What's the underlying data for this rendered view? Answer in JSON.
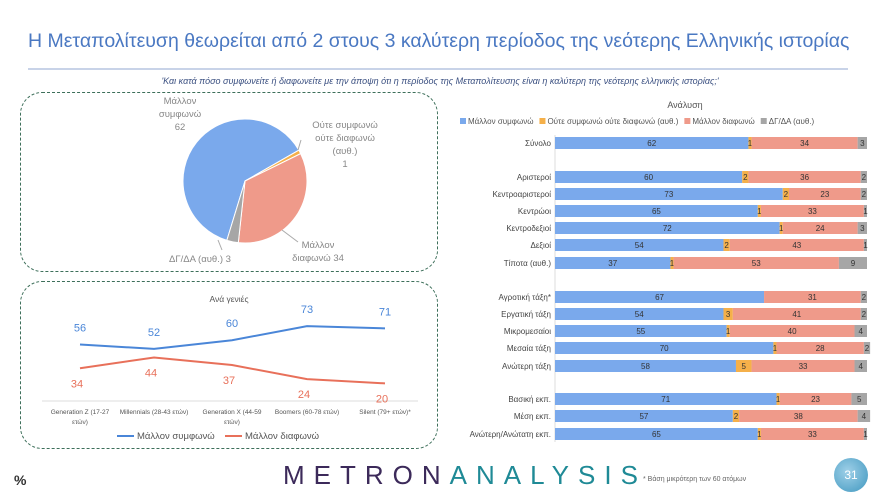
{
  "title": "Η Μεταπολίτευση θεωρείται από 2 στους 3 καλύτερη περίοδος της νεότερης Ελληνικής ιστορίας",
  "question": "'Και κατά πόσο συμφωνείτε ή διαφωνείτε με την άποψη ότι η περίοδος της Μεταπολίτευσης είναι η καλύτερη της νεότερης ελληνικής ιστορίας;'",
  "footer": {
    "unit": "%",
    "logo": "METRONANALYSIS",
    "note": "* Βάση μικρότερη των 60 ατόμων",
    "page": "31"
  },
  "colors": {
    "agree": "#7aa9ec",
    "neutral": "#f5b04a",
    "disagree": "#ef9a8a",
    "dk": "#a6a6a6",
    "line_agree": "#4a86d8",
    "line_disagree": "#e8705a"
  },
  "chart_data": [
    {
      "type": "pie",
      "slices": [
        {
          "label": "Μάλλον συμφωνώ",
          "value": 62
        },
        {
          "label": "Ούτε συμφωνώ ούτε διαφωνώ (αυθ.)",
          "value": 1
        },
        {
          "label": "Μάλλον διαφωνώ",
          "value": 34
        },
        {
          "label": "ΔΓ/ΔΑ (αυθ.)",
          "value": 3
        }
      ]
    },
    {
      "type": "line",
      "title": "Ανά γενιές",
      "categories": [
        "Generation Z (17-27 ετών)",
        "Millennials (28-43 ετών)",
        "Generation X (44-59 ετών)",
        "Boomers (60-78 ετών)",
        "Silent (79+ ετών)*"
      ],
      "series": [
        {
          "name": "Μάλλον συμφωνώ",
          "values": [
            56,
            52,
            60,
            73,
            71
          ]
        },
        {
          "name": "Μάλλον διαφωνώ",
          "values": [
            34,
            44,
            37,
            24,
            20
          ]
        }
      ]
    },
    {
      "type": "bar",
      "stacked": true,
      "orientation": "horizontal",
      "title": "Ανάλυση",
      "legend": "top",
      "series_names": [
        "Μάλλον συμφωνώ",
        "Ούτε συμφωνώ ούτε διαφωνώ (αυθ.)",
        "Μάλλον διαφωνώ",
        "ΔΓ/ΔΑ (αυθ.)"
      ],
      "rows": [
        {
          "label": "Σύνολο",
          "values": [
            62,
            1,
            34,
            3
          ]
        },
        {
          "label": "Αριστεροί",
          "values": [
            60,
            2,
            36,
            2
          ]
        },
        {
          "label": "Κεντροαριστεροί",
          "values": [
            73,
            2,
            23,
            2
          ]
        },
        {
          "label": "Κεντρώοι",
          "values": [
            65,
            1,
            33,
            1
          ]
        },
        {
          "label": "Κεντροδεξιοί",
          "values": [
            72,
            1,
            24,
            3
          ]
        },
        {
          "label": "Δεξιοί",
          "values": [
            54,
            2,
            43,
            1
          ]
        },
        {
          "label": "Τίποτα (αυθ.)",
          "values": [
            37,
            1,
            53,
            9
          ]
        },
        {
          "label": "Αγροτική τάξη*",
          "values": [
            67,
            0,
            31,
            2
          ]
        },
        {
          "label": "Εργατική τάξη",
          "values": [
            54,
            3,
            41,
            2
          ]
        },
        {
          "label": "Μικρομεσαίοι",
          "values": [
            55,
            1,
            40,
            4
          ]
        },
        {
          "label": "Μεσαία τάξη",
          "values": [
            70,
            1,
            28,
            2
          ]
        },
        {
          "label": "Ανώτερη τάξη",
          "values": [
            58,
            5,
            33,
            4
          ]
        },
        {
          "label": "Βασική εκπ.",
          "values": [
            71,
            1,
            23,
            5
          ]
        },
        {
          "label": "Μέση εκπ.",
          "values": [
            57,
            2,
            38,
            4
          ]
        },
        {
          "label": "Ανώτερη/Ανώτατη εκπ.",
          "values": [
            65,
            1,
            33,
            1
          ]
        }
      ]
    }
  ]
}
